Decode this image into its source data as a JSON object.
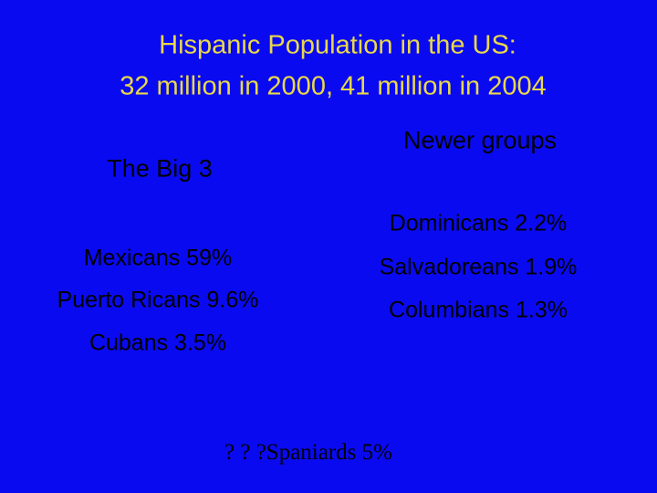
{
  "title": {
    "lines": [
      "Hispanic Population in the US:",
      "32 million in 2000, 41 million in 2004"
    ]
  },
  "columns": [
    {
      "heading": "The Big 3",
      "items": [
        "Mexicans 59%",
        "Puerto Ricans 9.6%",
        "Cubans 3.5%"
      ]
    },
    {
      "heading": "Newer groups",
      "items": [
        "Dominicans 2.2%",
        "Salvadoreans 1.9%",
        "Columbians 1.3%"
      ]
    }
  ],
  "footer": "? ? ?Spaniards 5%"
}
